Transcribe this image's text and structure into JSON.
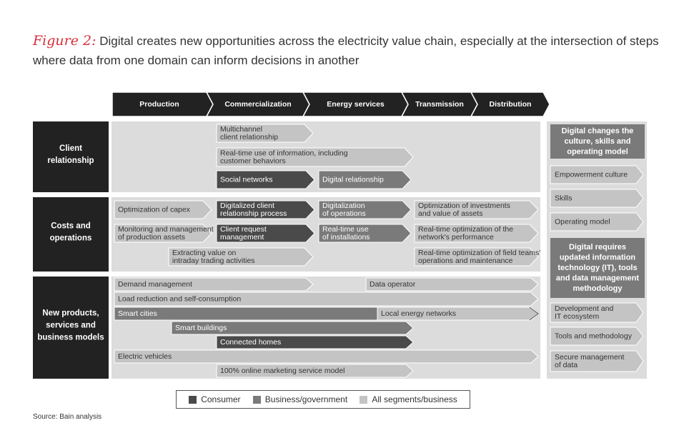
{
  "title": {
    "figure_label": "Figure 2:",
    "text": "Digital creates new opportunities across the electricity value chain, especially at the intersection of steps where data from one domain can inform decisions in another"
  },
  "colors": {
    "dark": "#4a4a4a",
    "mid": "#7a7a7a",
    "light": "#c4c4c4",
    "band": "#dcdcdc",
    "header": "#222222"
  },
  "value_chain": [
    "Production",
    "Commercialization",
    "Energy services",
    "Transmission",
    "Distribution"
  ],
  "rows": [
    {
      "label": "Client relationship"
    },
    {
      "label": "Costs and operations"
    },
    {
      "label": "New products, services and business models"
    }
  ],
  "items": [
    {
      "lines": [
        "Multichannel",
        "client relationship"
      ],
      "shade": "light"
    },
    {
      "lines": [
        "Real-time use of information, including",
        "customer behaviors"
      ],
      "shade": "light"
    },
    {
      "lines": [
        "Social networks"
      ],
      "shade": "dark"
    },
    {
      "lines": [
        "Digital relationship"
      ],
      "shade": "mid"
    },
    {
      "lines": [
        "Optimization of capex"
      ],
      "shade": "light"
    },
    {
      "lines": [
        "Digitalized client",
        "relationship process"
      ],
      "shade": "dark"
    },
    {
      "lines": [
        "Digitalization",
        "of operations"
      ],
      "shade": "mid"
    },
    {
      "lines": [
        "Optimization of investments",
        "and value of assets"
      ],
      "shade": "light"
    },
    {
      "lines": [
        "Monitoring and management",
        "of production assets"
      ],
      "shade": "light"
    },
    {
      "lines": [
        "Client request",
        "management"
      ],
      "shade": "dark"
    },
    {
      "lines": [
        "Real-time use",
        "of installations"
      ],
      "shade": "mid"
    },
    {
      "lines": [
        "Real-time optimization of the",
        "network's performance"
      ],
      "shade": "light"
    },
    {
      "lines": [
        "Extracting value on",
        "intraday trading activities"
      ],
      "shade": "light"
    },
    {
      "lines": [
        "Real-time optimization of field teams'",
        "operations and maintenance"
      ],
      "shade": "light"
    },
    {
      "lines": [
        "Demand management"
      ],
      "shade": "light"
    },
    {
      "lines": [
        "Data operator"
      ],
      "shade": "light"
    },
    {
      "lines": [
        "Load reduction and self-consumption"
      ],
      "shade": "light"
    },
    {
      "lines": [
        "Smart cities"
      ],
      "shade": "mid"
    },
    {
      "lines": [
        "Local energy networks"
      ],
      "shade": "light"
    },
    {
      "lines": [
        "Smart buildings"
      ],
      "shade": "mid"
    },
    {
      "lines": [
        "Connected homes"
      ],
      "shade": "dark"
    },
    {
      "lines": [
        "Electric vehicles"
      ],
      "shade": "light"
    },
    {
      "lines": [
        "100% online marketing service model"
      ],
      "shade": "light"
    }
  ],
  "side_panels": [
    {
      "title": [
        "Digital changes the",
        "culture, skills and",
        "operating model"
      ],
      "items": [
        [
          "Empowerment culture"
        ],
        [
          "Skills"
        ],
        [
          "Operating model"
        ]
      ]
    },
    {
      "title": [
        "Digital requires",
        "updated information",
        "technology (IT), tools",
        "and data management",
        "methodology"
      ],
      "items": [
        [
          "Development and",
          "IT ecosystem"
        ],
        [
          "Tools and methodology"
        ],
        [
          "Secure management",
          "of data"
        ]
      ]
    }
  ],
  "legend": [
    {
      "label": "Consumer",
      "color": "#4a4a4a"
    },
    {
      "label": "Business/government",
      "color": "#7a7a7a"
    },
    {
      "label": "All segments/business",
      "color": "#c4c4c4"
    }
  ],
  "source": "Source: Bain analysis"
}
